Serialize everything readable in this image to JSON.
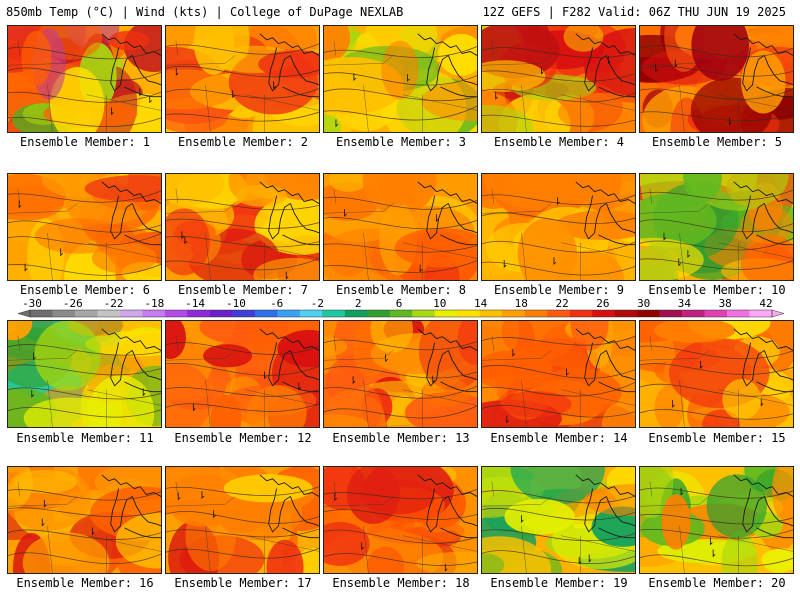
{
  "header": {
    "left": "850mb Temp (°C) | Wind (kts) | College of DuPage NEXLAB",
    "right": "12Z GEFS | F282 Valid: 06Z THU JUN 19 2025"
  },
  "colorbar": {
    "labels": [
      "-30",
      "-26",
      "-22",
      "-18",
      "-14",
      "-10",
      "-6",
      "-2",
      "2",
      "6",
      "10",
      "14",
      "18",
      "22",
      "26",
      "30",
      "34",
      "38",
      "42"
    ],
    "colors": [
      "#6e6e6e",
      "#8a8a8a",
      "#a6a6a6",
      "#c4c4c4",
      "#cfa8e8",
      "#c77bf0",
      "#b44be8",
      "#8e2bd6",
      "#6a1fc8",
      "#3f3fd8",
      "#2f6fe8",
      "#3ba0f0",
      "#4fd0f0",
      "#1fc8a0",
      "#0fa060",
      "#2fa030",
      "#60b820",
      "#a8d810",
      "#e8f000",
      "#ffe000",
      "#ffc000",
      "#ffa000",
      "#ff8000",
      "#ff5a10",
      "#f03010",
      "#d81010",
      "#b00808",
      "#900000",
      "#a01050",
      "#c02080",
      "#e040b0",
      "#f070e0",
      "#ffa8f8"
    ]
  },
  "panels": [
    {
      "caption": "Ensemble Member: 1",
      "base": "#ffb000",
      "palette": [
        "#ff6000",
        "#ff8000",
        "#f03010",
        "#c01020",
        "#a01050",
        "#c04090",
        "#ffe000",
        "#a8d810",
        "#50b020"
      ]
    },
    {
      "caption": "Ensemble Member: 2",
      "base": "#ff9a00",
      "palette": [
        "#ff7000",
        "#ff5a10",
        "#f03010",
        "#ffc000",
        "#ffe000",
        "#ff8000",
        "#ffd000",
        "#f04010",
        "#ff6a10"
      ]
    },
    {
      "caption": "Ensemble Member: 3",
      "base": "#ffb000",
      "palette": [
        "#ffc000",
        "#ff9000",
        "#ffe000",
        "#ff8000",
        "#ffd000",
        "#a8d810",
        "#60b820",
        "#ff8800",
        "#ffd800"
      ]
    },
    {
      "caption": "Ensemble Member: 4",
      "base": "#ff8a00",
      "palette": [
        "#c01010",
        "#d81010",
        "#f03010",
        "#ff6000",
        "#ffc000",
        "#ffe000",
        "#a8d810",
        "#ff8000",
        "#ffa000"
      ]
    },
    {
      "caption": "Ensemble Member: 5",
      "base": "#ff7000",
      "palette": [
        "#900000",
        "#b00808",
        "#d81010",
        "#f03010",
        "#ff5a10",
        "#ff8000",
        "#ffa000",
        "#a00010",
        "#c01010"
      ]
    },
    {
      "caption": "Ensemble Member: 6",
      "base": "#ffb000",
      "palette": [
        "#ff8000",
        "#ff6000",
        "#ffc000",
        "#ffe000",
        "#ff9000",
        "#f04010",
        "#ffd000",
        "#ff7000",
        "#ffa000"
      ]
    },
    {
      "caption": "Ensemble Member: 7",
      "base": "#ffa000",
      "palette": [
        "#f03010",
        "#ff5a10",
        "#ff8000",
        "#ffc000",
        "#ffe000",
        "#ff9000",
        "#ffb000",
        "#ff7000",
        "#d81010"
      ]
    },
    {
      "caption": "Ensemble Member: 8",
      "base": "#ff9a00",
      "palette": [
        "#f03010",
        "#ff6000",
        "#ff8000",
        "#ffa000",
        "#ffc000",
        "#ff7000",
        "#ffb000",
        "#ff5000",
        "#ff9000"
      ]
    },
    {
      "caption": "Ensemble Member: 9",
      "base": "#ffb000",
      "palette": [
        "#ff8000",
        "#ffc000",
        "#ffd000",
        "#ff9000",
        "#ffa000",
        "#ffe000",
        "#ff7000",
        "#ffb800",
        "#ff8800"
      ]
    },
    {
      "caption": "Ensemble Member: 10",
      "base": "#ffb000",
      "palette": [
        "#f03010",
        "#ff6000",
        "#ff8000",
        "#ffc000",
        "#ffe000",
        "#a8d810",
        "#60b820",
        "#2fa030",
        "#0f8030"
      ]
    },
    {
      "caption": "Ensemble Member: 11",
      "base": "#ffc000",
      "palette": [
        "#1fc8a0",
        "#0fa060",
        "#2fa030",
        "#60b820",
        "#a8d810",
        "#e8f000",
        "#ffe000",
        "#ffa000",
        "#ff9000"
      ]
    },
    {
      "caption": "Ensemble Member: 12",
      "base": "#ff8a00",
      "palette": [
        "#d81010",
        "#f03010",
        "#ff5a10",
        "#ff8000",
        "#ffa000",
        "#ff7000",
        "#e02010",
        "#ff6000",
        "#ff9000"
      ]
    },
    {
      "caption": "Ensemble Member: 13",
      "base": "#ff8a00",
      "palette": [
        "#f03010",
        "#d81010",
        "#ff5a10",
        "#ff8000",
        "#ffa000",
        "#ffc000",
        "#ff7000",
        "#e02010",
        "#ff9000"
      ]
    },
    {
      "caption": "Ensemble Member: 14",
      "base": "#ff8a00",
      "palette": [
        "#f03010",
        "#ff5a10",
        "#ff8000",
        "#ffa000",
        "#ff7000",
        "#e02010",
        "#ffb000",
        "#ff6000",
        "#ff9000"
      ]
    },
    {
      "caption": "Ensemble Member: 15",
      "base": "#ffb000",
      "palette": [
        "#f03010",
        "#ff6000",
        "#ff8000",
        "#ffc000",
        "#ffe000",
        "#ffa000",
        "#ff9000",
        "#ffd000",
        "#ff7000"
      ]
    },
    {
      "caption": "Ensemble Member: 16",
      "base": "#ffa000",
      "palette": [
        "#d81010",
        "#f03010",
        "#ff6000",
        "#ff8000",
        "#ffc000",
        "#ffe000",
        "#ffa000",
        "#ff9000",
        "#ffb000"
      ]
    },
    {
      "caption": "Ensemble Member: 17",
      "base": "#ffa000",
      "palette": [
        "#d81010",
        "#f03010",
        "#ff6000",
        "#ff8000",
        "#ffc000",
        "#ffe000",
        "#ffa000",
        "#ff9000",
        "#ffb000"
      ]
    },
    {
      "caption": "Ensemble Member: 18",
      "base": "#ff9000",
      "palette": [
        "#f03010",
        "#ff6000",
        "#ff8000",
        "#ffa000",
        "#ffc000",
        "#ff7000",
        "#e02010",
        "#ffb000",
        "#ff5000"
      ]
    },
    {
      "caption": "Ensemble Member: 19",
      "base": "#ffb000",
      "palette": [
        "#0fa060",
        "#2fa030",
        "#60b820",
        "#a8d810",
        "#e8f000",
        "#ffe000",
        "#ffc000",
        "#ff9000",
        "#ff8000"
      ]
    },
    {
      "caption": "Ensemble Member: 20",
      "base": "#ffc000",
      "palette": [
        "#2fa030",
        "#60b820",
        "#a8d810",
        "#e8f000",
        "#ffe000",
        "#ffc000",
        "#ff9000",
        "#ff8000",
        "#ffa000"
      ]
    }
  ]
}
